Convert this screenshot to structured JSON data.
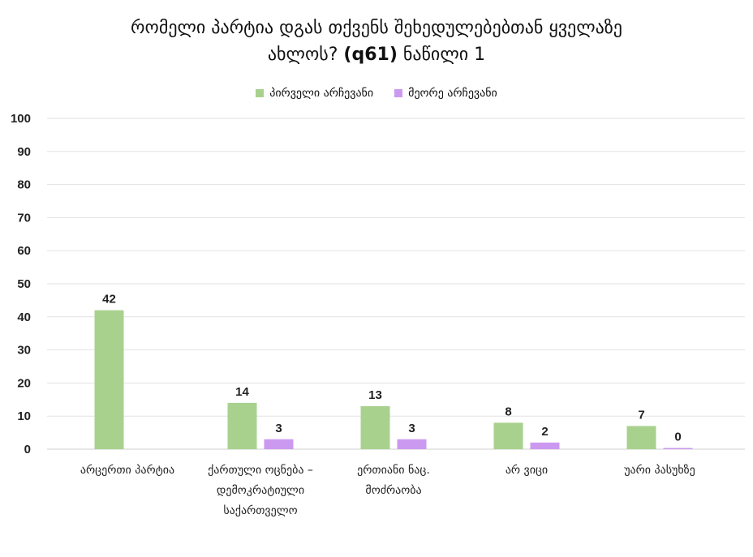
{
  "chart_data": {
    "type": "bar",
    "title_line1": "რომელი პარტია დგას თქვენს შეხედულებებთან ყველაზე",
    "title_line2_prefix": "ახლოს? ",
    "title_line2_bold": "(q61)",
    "title_line2_suffix": " ნაწილი 1",
    "categories": [
      [
        "არცერთი პარტია"
      ],
      [
        "ქართული ოცნება –",
        "დემოკრატიული",
        "საქართველო"
      ],
      [
        "ერთიანი ნაც.",
        "მოძრაობა"
      ],
      [
        "არ ვიცი"
      ],
      [
        "უარი პასუხზე"
      ]
    ],
    "series": [
      {
        "name": "პირველი არჩევანი",
        "color": "#a9d18e",
        "values": [
          42,
          14,
          13,
          8,
          7
        ]
      },
      {
        "name": "მეორე არჩევანი",
        "color": "#cc99f0",
        "values": [
          null,
          3,
          3,
          2,
          0
        ]
      }
    ],
    "ylim": [
      0,
      100
    ],
    "yticks": [
      0,
      10,
      20,
      30,
      40,
      50,
      60,
      70,
      80,
      90,
      100
    ],
    "grid": true,
    "legend_position": "top-center"
  }
}
